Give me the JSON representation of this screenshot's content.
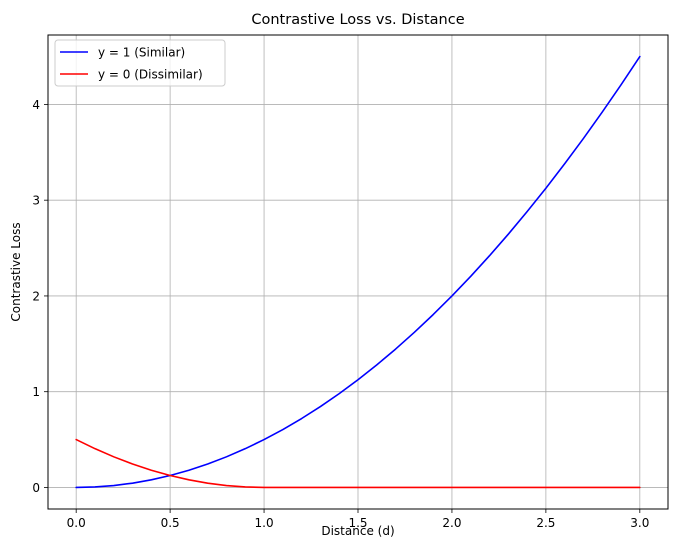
{
  "chart_data": {
    "type": "line",
    "title": "Contrastive Loss vs. Distance",
    "xlabel": "Distance (d)",
    "ylabel": "Contrastive Loss",
    "xlim": [
      -0.15,
      3.15
    ],
    "ylim": [
      -0.225,
      4.725
    ],
    "xticks": [
      0.0,
      0.5,
      1.0,
      1.5,
      2.0,
      2.5,
      3.0
    ],
    "xtick_labels": [
      "0.0",
      "0.5",
      "1.0",
      "1.5",
      "2.0",
      "2.5",
      "3.0"
    ],
    "yticks": [
      0,
      1,
      2,
      3,
      4
    ],
    "ytick_labels": [
      "0",
      "1",
      "2",
      "3",
      "4"
    ],
    "grid": true,
    "legend_position": "upper-left",
    "series": [
      {
        "name": "y = 1 (Similar)",
        "color": "#0000ff",
        "x": [
          0.0,
          0.1,
          0.2,
          0.3,
          0.4,
          0.5,
          0.6,
          0.7,
          0.8,
          0.9,
          1.0,
          1.1,
          1.2,
          1.3,
          1.4,
          1.5,
          1.6,
          1.7,
          1.8,
          1.9,
          2.0,
          2.1,
          2.2,
          2.3,
          2.4,
          2.5,
          2.6,
          2.7,
          2.8,
          2.9,
          3.0
        ],
        "y": [
          0.0,
          0.005,
          0.02,
          0.045,
          0.08,
          0.125,
          0.18,
          0.245,
          0.32,
          0.405,
          0.5,
          0.605,
          0.72,
          0.845,
          0.98,
          1.125,
          1.28,
          1.445,
          1.62,
          1.805,
          2.0,
          2.205,
          2.42,
          2.645,
          2.88,
          3.125,
          3.38,
          3.645,
          3.92,
          4.205,
          4.5
        ]
      },
      {
        "name": "y = 0 (Dissimilar)",
        "color": "#ff0000",
        "x": [
          0.0,
          0.1,
          0.2,
          0.3,
          0.4,
          0.5,
          0.6,
          0.7,
          0.8,
          0.9,
          1.0,
          1.5,
          2.0,
          2.5,
          3.0
        ],
        "y": [
          0.5,
          0.405,
          0.32,
          0.245,
          0.18,
          0.125,
          0.08,
          0.045,
          0.02,
          0.005,
          0.0,
          0.0,
          0.0,
          0.0,
          0.0
        ]
      }
    ]
  }
}
